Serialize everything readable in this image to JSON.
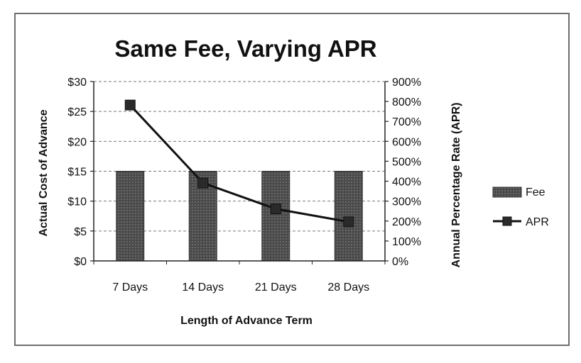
{
  "chart_data": {
    "type": "bar",
    "title": "Same Fee, Varying APR",
    "xlabel": "Length of Advance Term",
    "ylabel": "Actual Cost of Advance",
    "y2label": "Annual Percentage Rate (APR)",
    "categories": [
      "7 Days",
      "14 Days",
      "21 Days",
      "28 Days"
    ],
    "ylim": [
      0,
      30
    ],
    "y2lim": [
      0,
      900
    ],
    "yticks": [
      "$0",
      "$5",
      "$10",
      "$15",
      "$20",
      "$25",
      "$30"
    ],
    "y2ticks": [
      "0%",
      "100%",
      "200%",
      "300%",
      "400%",
      "500%",
      "600%",
      "700%",
      "800%",
      "900%"
    ],
    "grid": true,
    "legend_position": "right",
    "series": [
      {
        "name": "Fee",
        "type": "bar",
        "axis": "left",
        "values": [
          15,
          15,
          15,
          15
        ],
        "color": "#4a4a4a"
      },
      {
        "name": "APR",
        "type": "line",
        "axis": "right",
        "values": [
          782,
          391,
          261,
          196
        ],
        "color": "#111111"
      }
    ]
  }
}
